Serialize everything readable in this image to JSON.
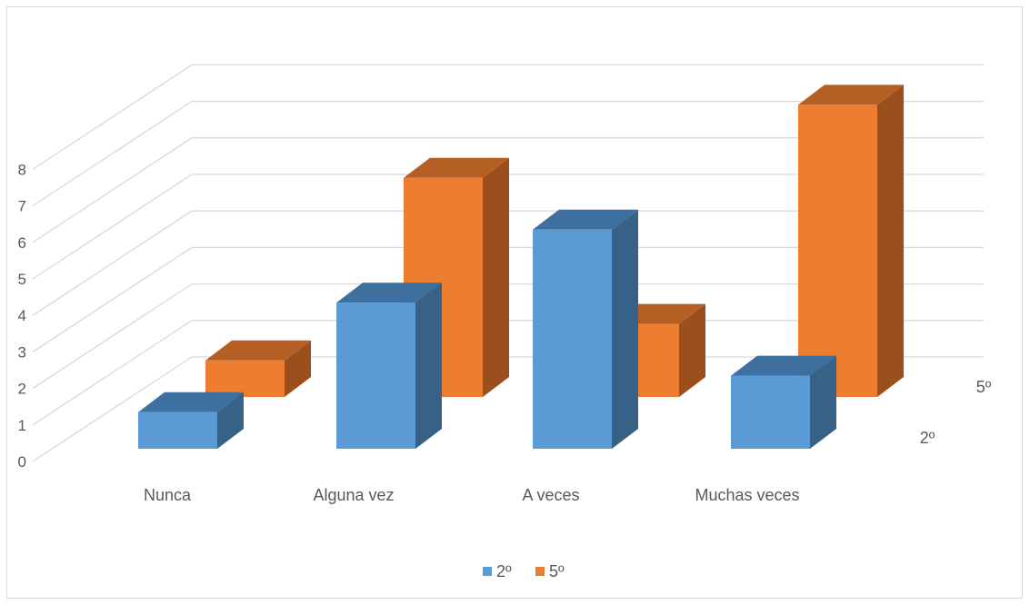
{
  "chart_data": {
    "type": "bar",
    "subtype": "3d-clustered-depth",
    "categories": [
      "Nunca",
      "Alguna vez",
      "A veces",
      "Muchas veces"
    ],
    "series": [
      {
        "name": "2º",
        "values": [
          1,
          4,
          6,
          2
        ]
      },
      {
        "name": "5º",
        "values": [
          1,
          6,
          2,
          8
        ]
      }
    ],
    "ylim": [
      0,
      8
    ],
    "yticks": [
      "0",
      "1",
      "2",
      "3",
      "4",
      "5",
      "6",
      "7",
      "8"
    ],
    "depth_labels": [
      "2º",
      "5º"
    ],
    "grid": true,
    "legend": "bottom",
    "colors": {
      "2º": "#5b9bd5",
      "5º": "#ed7d31"
    }
  }
}
